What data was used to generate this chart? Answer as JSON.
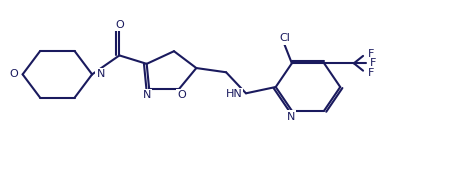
{
  "bg_color": "#ffffff",
  "line_color": "#1a1a5e",
  "line_width": 1.5,
  "font_size": 8,
  "figsize": [
    4.77,
    1.74
  ],
  "dpi": 100,
  "xlim": [
    0,
    19
  ],
  "ylim": [
    1.5,
    9.5
  ]
}
